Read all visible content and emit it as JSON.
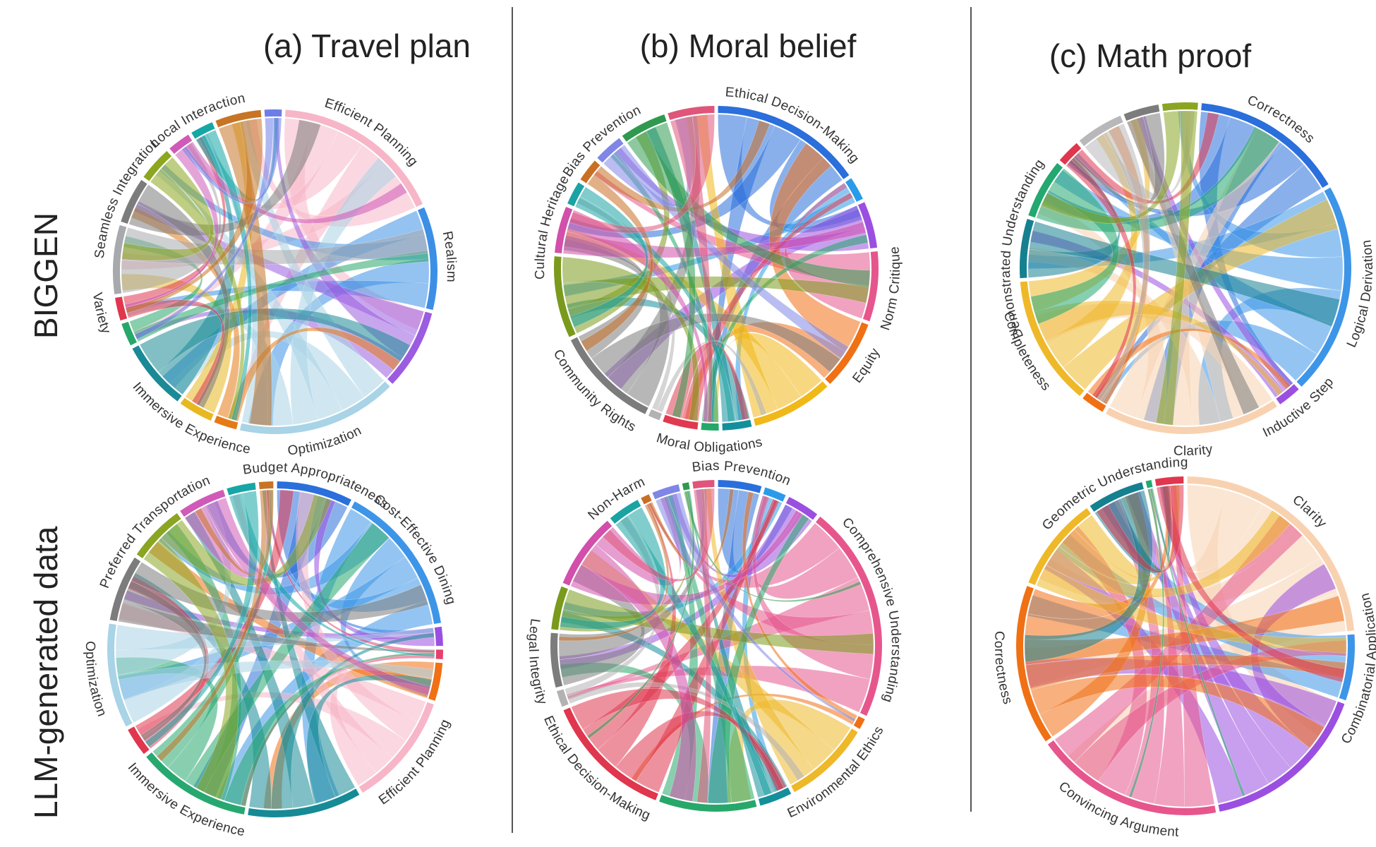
{
  "columns": [
    {
      "title": "(a) Travel plan"
    },
    {
      "title": "(b) Moral belief"
    },
    {
      "title": "(c) Math proof"
    }
  ],
  "rows": [
    {
      "title": "BIGGEN"
    },
    {
      "title": "LLM-generated data"
    }
  ],
  "diagrams": [
    {
      "segments": [
        {
          "label": "Efficient Planning",
          "color": "#f7b6c8",
          "weight": 15
        },
        {
          "label": "Realism",
          "color": "#3d8fe6",
          "weight": 9
        },
        {
          "label": "",
          "color": "#9b5ce0",
          "weight": 7
        },
        {
          "label": "Optimization",
          "color": "#a9d3e6",
          "weight": 14
        },
        {
          "label": "",
          "color": "#e67a14",
          "weight": 2
        },
        {
          "label": "Immersive Experience",
          "color": "#e8b820",
          "weight": 3
        },
        {
          "label": "",
          "color": "#1a8a96",
          "weight": 6
        },
        {
          "label": "",
          "color": "#27a86a",
          "weight": 2
        },
        {
          "label": "Variety",
          "color": "#e0364e",
          "weight": 2
        },
        {
          "label": "",
          "color": "#a7a9ac",
          "weight": 6
        },
        {
          "label": "Seamless Integration",
          "color": "#7c7c7c",
          "weight": 4
        },
        {
          "label": "",
          "color": "#8ca61e",
          "weight": 3
        },
        {
          "label": "",
          "color": "#d05ab8",
          "weight": 2
        },
        {
          "label": "Local Interaction",
          "color": "#16a6a6",
          "weight": 2
        },
        {
          "label": "",
          "color": "#c77426",
          "weight": 4
        },
        {
          "label": "",
          "color": "#6d7de8",
          "weight": 1.5
        }
      ]
    },
    {
      "segments": [
        {
          "label": "Ethical Decision-Making",
          "color": "#2a6fdb",
          "weight": 13
        },
        {
          "label": "",
          "color": "#2a9be8",
          "weight": 2
        },
        {
          "label": "",
          "color": "#9b4fe0",
          "weight": 4
        },
        {
          "label": "Norm Critique",
          "color": "#e6568c",
          "weight": 6
        },
        {
          "label": "Equity",
          "color": "#f07014",
          "weight": 6
        },
        {
          "label": "",
          "color": "#f0b818",
          "weight": 7
        },
        {
          "label": "",
          "color": "#138f9b",
          "weight": 2.5
        },
        {
          "label": "Moral Obligations",
          "color": "#23a86a",
          "weight": 1.5
        },
        {
          "label": "",
          "color": "#e03a50",
          "weight": 3
        },
        {
          "label": "",
          "color": "#b2b2b2",
          "weight": 1
        },
        {
          "label": "Community Rights",
          "color": "#7c7c7c",
          "weight": 9
        },
        {
          "label": "",
          "color": "#7a9a1c",
          "weight": 7
        },
        {
          "label": "Cultural Heritage",
          "color": "#d24fab",
          "weight": 4
        },
        {
          "label": "",
          "color": "#1aa3a3",
          "weight": 2
        },
        {
          "label": "",
          "color": "#c96f25",
          "weight": 2
        },
        {
          "label": "Bias Prevention",
          "color": "#7f86e6",
          "weight": 2.5
        },
        {
          "label": "",
          "color": "#2f9a4f",
          "weight": 4
        },
        {
          "label": "",
          "color": "#e0557a",
          "weight": 4
        }
      ]
    },
    {
      "segments": [
        {
          "label": "Correctness",
          "color": "#2a6fdb",
          "weight": 13
        },
        {
          "label": "Logical Derivation",
          "color": "#3d95e8",
          "weight": 18
        },
        {
          "label": "Inductive Step",
          "color": "#9b4fe0",
          "weight": 2
        },
        {
          "label": "Clarity",
          "color": "#f8d2b0",
          "weight": 15
        },
        {
          "label": "",
          "color": "#f07014",
          "weight": 2
        },
        {
          "label": "Completeness",
          "color": "#eeb828",
          "weight": 11
        },
        {
          "label": "Demonstrated Understanding",
          "color": "#15808f",
          "weight": 5
        },
        {
          "label": "",
          "color": "#23a870",
          "weight": 5
        },
        {
          "label": "",
          "color": "#e0364e",
          "weight": 2
        },
        {
          "label": "",
          "color": "#b8b8bb",
          "weight": 4
        },
        {
          "label": "",
          "color": "#7c7c7c",
          "weight": 3
        },
        {
          "label": "",
          "color": "#8aa522",
          "weight": 3
        }
      ]
    },
    {
      "segments": [
        {
          "label": "Budget Appropriateness",
          "color": "#2a6fdb",
          "weight": 8
        },
        {
          "label": "Cost-Effective Dining",
          "color": "#3d95e8",
          "weight": 16
        },
        {
          "label": "",
          "color": "#9b4fe0",
          "weight": 2
        },
        {
          "label": "",
          "color": "#e6406e",
          "weight": 1
        },
        {
          "label": "",
          "color": "#f07014",
          "weight": 4
        },
        {
          "label": "Efficient Planning",
          "color": "#f7b6c8",
          "weight": 12
        },
        {
          "label": "",
          "color": "#168b96",
          "weight": 12
        },
        {
          "label": "Immersive Experience",
          "color": "#27a870",
          "weight": 12
        },
        {
          "label": "",
          "color": "#e0364e",
          "weight": 3
        },
        {
          "label": "Optimization",
          "color": "#a9d3e6",
          "weight": 11
        },
        {
          "label": "",
          "color": "#7c7c7c",
          "weight": 7
        },
        {
          "label": "Preferred Transportation",
          "color": "#8aa522",
          "weight": 6
        },
        {
          "label": "",
          "color": "#d05ab8",
          "weight": 5
        },
        {
          "label": "",
          "color": "#16a6a6",
          "weight": 3
        },
        {
          "label": "",
          "color": "#c77426",
          "weight": 1.5
        }
      ]
    },
    {
      "segments": [
        {
          "label": "Bias Prevention",
          "color": "#2a6fdb",
          "weight": 4
        },
        {
          "label": "",
          "color": "#2a9be8",
          "weight": 2
        },
        {
          "label": "",
          "color": "#9b4fe0",
          "weight": 3
        },
        {
          "label": "Comprehensive Understanding",
          "color": "#e6568c",
          "weight": 20
        },
        {
          "label": "",
          "color": "#f07014",
          "weight": 1
        },
        {
          "label": "Environmental Ethics",
          "color": "#eeb828",
          "weight": 8
        },
        {
          "label": "",
          "color": "#138f9b",
          "weight": 3
        },
        {
          "label": "",
          "color": "#27a86a",
          "weight": 9
        },
        {
          "label": "Ethical Decision-Making",
          "color": "#e0364e",
          "weight": 12
        },
        {
          "label": "",
          "color": "#b2b2b2",
          "weight": 1.5
        },
        {
          "label": "Legal Integrity",
          "color": "#7c7c7c",
          "weight": 5
        },
        {
          "label": "",
          "color": "#7a9a1c",
          "weight": 4
        },
        {
          "label": "",
          "color": "#d24fab",
          "weight": 7
        },
        {
          "label": "Non-Harm",
          "color": "#1aa3a3",
          "weight": 3
        },
        {
          "label": "",
          "color": "#c96f25",
          "weight": 0.8
        },
        {
          "label": "",
          "color": "#7f86e6",
          "weight": 2.5
        },
        {
          "label": "",
          "color": "#2f9a4f",
          "weight": 0.6
        },
        {
          "label": "",
          "color": "#e0557a",
          "weight": 2
        }
      ]
    },
    {
      "segments": [
        {
          "label": "Clarity",
          "color": "#f8d2b0",
          "weight": 26
        },
        {
          "label": "Combinatorial Application",
          "color": "#3d95e8",
          "weight": 7
        },
        {
          "label": "",
          "color": "#9b4fe0",
          "weight": 18
        },
        {
          "label": "Convincing Argument",
          "color": "#e6568c",
          "weight": 20
        },
        {
          "label": "Correctness",
          "color": "#f07014",
          "weight": 17
        },
        {
          "label": "",
          "color": "#eeb828",
          "weight": 10
        },
        {
          "label": "Geometric Understanding",
          "color": "#15808f",
          "weight": 6
        },
        {
          "label": "",
          "color": "#23a870",
          "weight": 0.6
        },
        {
          "label": "",
          "color": "#e0364e",
          "weight": 3
        }
      ]
    }
  ]
}
